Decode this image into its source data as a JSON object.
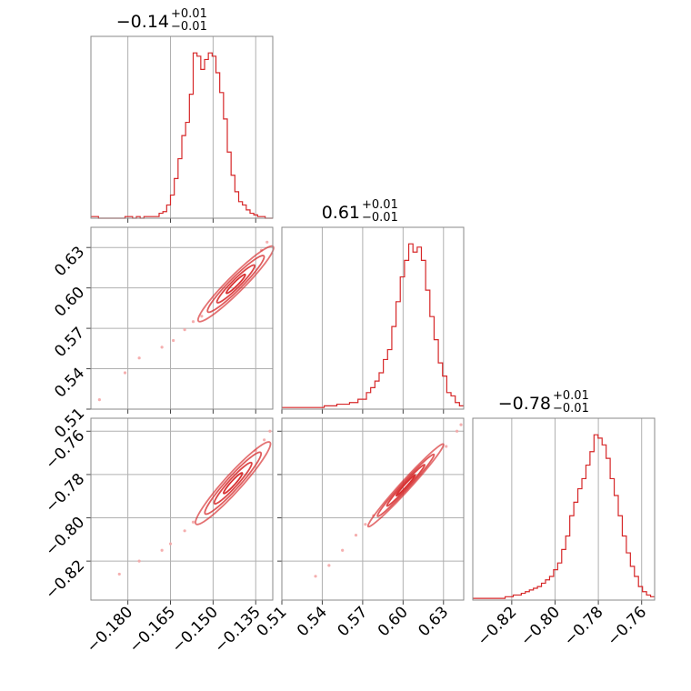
{
  "figure": {
    "color": "#d62728",
    "sample_color": "#f4a6a6"
  },
  "chart_data": {
    "type": "corner",
    "grid": true,
    "parameters": [
      {
        "median": "−0.14",
        "err_plus": "+0.01",
        "err_minus": "−0.01",
        "range": [
          -0.193,
          -0.129
        ],
        "ticks": [
          -0.18,
          -0.165,
          -0.15,
          -0.135
        ],
        "tick_labels": [
          "−0.180",
          "−0.165",
          "−0.150",
          "−0.135"
        ]
      },
      {
        "median": "0.61",
        "err_plus": "+0.01",
        "err_minus": "−0.01",
        "range": [
          0.51,
          0.645
        ],
        "ticks": [
          0.51,
          0.54,
          0.57,
          0.6,
          0.63
        ],
        "tick_labels": [
          "0.51",
          "0.54",
          "0.57",
          "0.60",
          "0.63"
        ]
      },
      {
        "median": "−0.78",
        "err_plus": "+0.01",
        "err_minus": "−0.01",
        "range": [
          -0.838,
          -0.754
        ],
        "ticks": [
          -0.82,
          -0.8,
          -0.78,
          -0.76
        ],
        "tick_labels": [
          "−0.82",
          "−0.80",
          "−0.78",
          "−0.76"
        ]
      }
    ],
    "histograms": [
      {
        "param": 0,
        "edges_from": -0.193,
        "edges_to": -0.129,
        "counts": [
          1,
          1,
          0,
          0,
          0,
          0,
          0,
          0,
          0,
          1,
          1,
          0,
          1,
          0,
          1,
          1,
          1,
          1,
          3,
          4,
          8,
          14,
          24,
          36,
          50,
          58,
          75,
          100,
          98,
          90,
          96,
          100,
          98,
          88,
          76,
          60,
          40,
          26,
          16,
          10,
          8,
          5,
          3,
          2,
          1,
          1,
          0,
          0
        ]
      },
      {
        "param": 1,
        "edges_from": 0.51,
        "edges_to": 0.645,
        "counts": [
          1,
          1,
          1,
          1,
          1,
          1,
          1,
          1,
          1,
          1,
          2,
          2,
          2,
          3,
          3,
          3,
          4,
          4,
          6,
          6,
          10,
          13,
          17,
          22,
          30,
          36,
          50,
          65,
          80,
          90,
          100,
          95,
          98,
          90,
          72,
          56,
          42,
          28,
          20,
          10,
          8,
          4,
          2
        ]
      },
      {
        "param": 2,
        "edges_from": -0.838,
        "edges_to": -0.754,
        "counts": [
          1,
          1,
          1,
          1,
          1,
          1,
          1,
          1,
          2,
          2,
          3,
          3,
          4,
          5,
          6,
          7,
          8,
          10,
          12,
          14,
          18,
          22,
          30,
          38,
          50,
          58,
          66,
          72,
          80,
          88,
          98,
          96,
          92,
          84,
          72,
          62,
          50,
          38,
          28,
          20,
          14,
          8,
          5,
          3,
          2
        ]
      }
    ],
    "pairs": [
      {
        "x_param": 0,
        "y_param": 1,
        "center": [
          -0.142,
          0.603
        ],
        "sigma": [
          0.0065,
          0.014
        ],
        "rho": 0.985,
        "contour_levels_sigma": [
          0.5,
          1.0,
          1.5,
          2.0
        ],
        "tail_samples": [
          [
            -0.181,
            0.537
          ],
          [
            -0.176,
            0.548
          ],
          [
            -0.168,
            0.556
          ],
          [
            -0.164,
            0.561
          ],
          [
            -0.16,
            0.569
          ],
          [
            -0.157,
            0.575
          ],
          [
            -0.154,
            0.579
          ],
          [
            -0.131,
            0.634
          ],
          [
            -0.133,
            0.628
          ],
          [
            -0.19,
            0.517
          ]
        ]
      },
      {
        "x_param": 0,
        "y_param": 2,
        "center": [
          -0.143,
          -0.784
        ],
        "sigma": [
          0.0065,
          0.0095
        ],
        "rho": 0.985,
        "contour_levels_sigma": [
          0.5,
          1.0,
          1.5,
          2.0
        ],
        "tail_samples": [
          [
            -0.183,
            -0.826
          ],
          [
            -0.176,
            -0.82
          ],
          [
            -0.168,
            -0.815
          ],
          [
            -0.165,
            -0.812
          ],
          [
            -0.16,
            -0.806
          ],
          [
            -0.157,
            -0.802
          ],
          [
            -0.132,
            -0.764
          ],
          [
            -0.13,
            -0.76
          ],
          [
            -0.135,
            -0.769
          ]
        ]
      },
      {
        "x_param": 1,
        "y_param": 2,
        "center": [
          0.602,
          -0.785
        ],
        "sigma": [
          0.014,
          0.0095
        ],
        "rho": 0.995,
        "contour_levels_sigma": [
          0.5,
          1.0,
          1.5,
          2.0
        ],
        "tail_samples": [
          [
            0.535,
            -0.827
          ],
          [
            0.545,
            -0.822
          ],
          [
            0.555,
            -0.815
          ],
          [
            0.565,
            -0.808
          ],
          [
            0.572,
            -0.803
          ],
          [
            0.578,
            -0.799
          ],
          [
            0.632,
            -0.767
          ],
          [
            0.64,
            -0.76
          ],
          [
            0.643,
            -0.757
          ]
        ]
      }
    ]
  }
}
